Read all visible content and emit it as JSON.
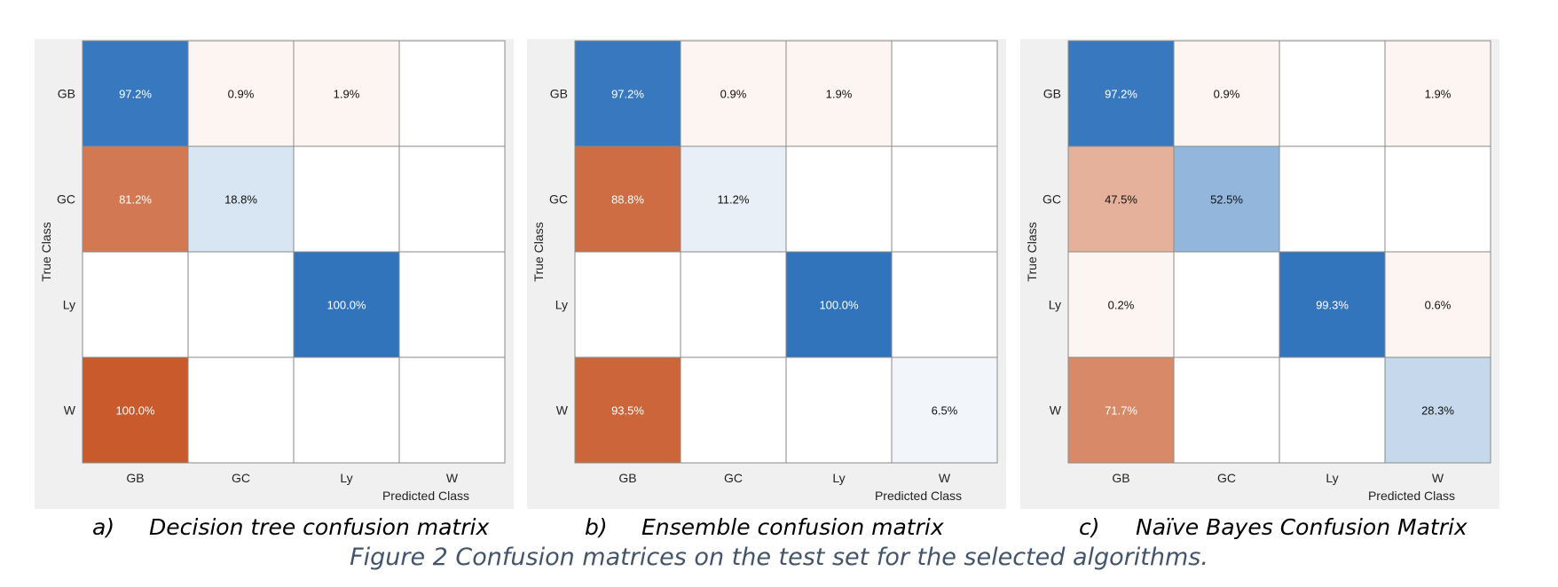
{
  "figure_caption": "Figure 2 Confusion matrices on the test set for the selected algorithms.",
  "colors": {
    "diagonal": "#3274bc",
    "off_diagonal": "#c85a2c",
    "grid": "#8a8a8a",
    "panel_bg": "#f0f0f0"
  },
  "chart_data": [
    {
      "type": "heatmap",
      "caption_letter": "a)",
      "caption_text": "Decision tree confusion matrix",
      "xlabel": "Predicted Class",
      "ylabel": "True Class",
      "x_categories": [
        "GB",
        "GC",
        "Ly",
        "W"
      ],
      "y_categories": [
        "GB",
        "GC",
        "Ly",
        "W"
      ],
      "values": [
        [
          97.2,
          0.9,
          1.9,
          null
        ],
        [
          81.2,
          18.8,
          null,
          null
        ],
        [
          null,
          null,
          100.0,
          null
        ],
        [
          100.0,
          null,
          null,
          null
        ]
      ],
      "labels": [
        [
          "97.2%",
          "0.9%",
          "1.9%",
          ""
        ],
        [
          "81.2%",
          "18.8%",
          "",
          ""
        ],
        [
          "",
          "",
          "100.0%",
          ""
        ],
        [
          "100.0%",
          "",
          "",
          ""
        ]
      ]
    },
    {
      "type": "heatmap",
      "caption_letter": "b)",
      "caption_text": "Ensemble confusion matrix",
      "xlabel": "Predicted Class",
      "ylabel": "True Class",
      "x_categories": [
        "GB",
        "GC",
        "Ly",
        "W"
      ],
      "y_categories": [
        "GB",
        "GC",
        "Ly",
        "W"
      ],
      "values": [
        [
          97.2,
          0.9,
          1.9,
          null
        ],
        [
          88.8,
          11.2,
          null,
          null
        ],
        [
          null,
          null,
          100.0,
          null
        ],
        [
          93.5,
          null,
          null,
          6.5
        ]
      ],
      "labels": [
        [
          "97.2%",
          "0.9%",
          "1.9%",
          ""
        ],
        [
          "88.8%",
          "11.2%",
          "",
          ""
        ],
        [
          "",
          "",
          "100.0%",
          ""
        ],
        [
          "93.5%",
          "",
          "",
          "6.5%"
        ]
      ]
    },
    {
      "type": "heatmap",
      "caption_letter": "c)",
      "caption_text": "Naïve Bayes Confusion Matrix",
      "xlabel": "Predicted Class",
      "ylabel": "True Class",
      "x_categories": [
        "GB",
        "GC",
        "Ly",
        "W"
      ],
      "y_categories": [
        "GB",
        "GC",
        "Ly",
        "W"
      ],
      "values": [
        [
          97.2,
          0.9,
          null,
          1.9
        ],
        [
          47.5,
          52.5,
          null,
          null
        ],
        [
          0.2,
          null,
          99.3,
          0.6
        ],
        [
          71.7,
          null,
          null,
          28.3
        ]
      ],
      "labels": [
        [
          "97.2%",
          "0.9%",
          "",
          "1.9%"
        ],
        [
          "47.5%",
          "52.5%",
          "",
          ""
        ],
        [
          "0.2%",
          "",
          "99.3%",
          "0.6%"
        ],
        [
          "71.7%",
          "",
          "",
          "28.3%"
        ]
      ]
    }
  ]
}
